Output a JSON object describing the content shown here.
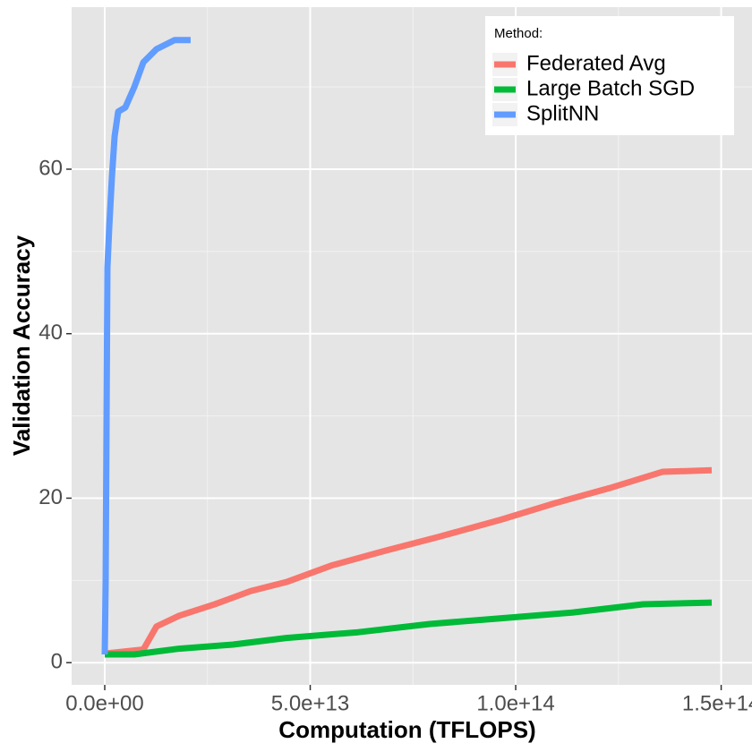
{
  "chart_data": {
    "type": "line",
    "x_label": "Computation (TFLOPS)",
    "y_label": "Validation Accuracy",
    "legend_title": "Method:",
    "legend_position": "top-right",
    "grid": true,
    "xlim": [
      -8060000000000.0,
      157500000000000.0
    ],
    "ylim": [
      -2.7,
      79.7
    ],
    "xticks": [
      {
        "value": 0,
        "label": "0.0e+00"
      },
      {
        "value": 50000000000000.0,
        "label": "5.0e+13"
      },
      {
        "value": 100000000000000.0,
        "label": "1.0e+14"
      },
      {
        "value": 150000000000000.0,
        "label": "1.5e+14"
      }
    ],
    "yticks": [
      0,
      20,
      40,
      60
    ],
    "x_minor_ticks": [
      25000000000000.0,
      75000000000000.0,
      125000000000000.0
    ],
    "y_minor_ticks": [
      10,
      30,
      50,
      70
    ],
    "series": [
      {
        "name": "Federated Avg",
        "color": "#F8766D",
        "x": [
          0,
          9400000000000.0,
          12600000000000.0,
          18100000000000.0,
          26800000000000.0,
          35500000000000.0,
          44200000000000.0,
          55100000000000.0,
          68200000000000.0,
          81300000000000.0,
          96500000000000.0,
          109600000000000.0,
          122700000000000.0,
          135700000000000.0,
          147700000000000.0
        ],
        "values": [
          1.1,
          1.6,
          4.4,
          5.7,
          7.1,
          8.7,
          9.8,
          11.8,
          13.6,
          15.3,
          17.4,
          19.4,
          21.2,
          23.2,
          23.4
        ]
      },
      {
        "name": "Large Batch SGD",
        "color": "#00BA38",
        "x": [
          0,
          7200000000000.0,
          18100000000000.0,
          31200000000000.0,
          44200000000000.0,
          61700000000000.0,
          79100000000000.0,
          96500000000000.0,
          114000000000000.0,
          131000000000000.0,
          147700000000000.0
        ],
        "values": [
          1,
          1,
          1.7,
          2.2,
          3.0,
          3.7,
          4.7,
          5.4,
          6.1,
          7.1,
          7.3
        ]
      },
      {
        "name": "SplitNN",
        "color": "#619CFF",
        "x": [
          0,
          220000000000.0,
          650000000000.0,
          1100000000000.0,
          1740000000000.0,
          2400000000000.0,
          3270000000000.0,
          5000000000000.0,
          7200000000000.0,
          9400000000000.0,
          12600000000000.0,
          17000000000000.0,
          20900000000000.0
        ],
        "values": [
          1,
          9.8,
          48,
          53,
          59,
          64,
          67,
          67.5,
          70,
          73,
          74.6,
          75.7,
          75.7
        ]
      }
    ]
  }
}
